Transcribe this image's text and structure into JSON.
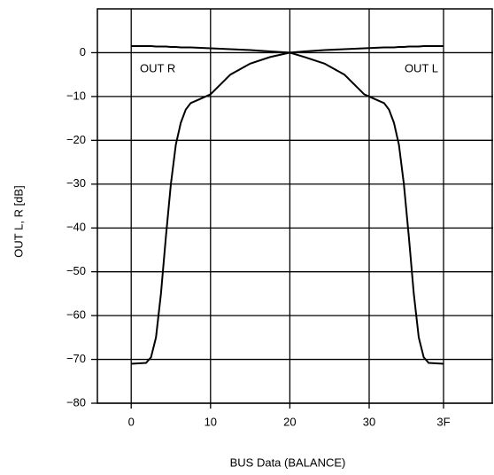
{
  "chart_data": {
    "type": "line",
    "x_label": "BUS Data (BALANCE)",
    "y_label": "OUT L, R [dB]",
    "x": [
      0,
      3,
      4,
      5,
      6,
      7,
      8,
      9,
      10,
      11,
      12,
      14,
      16,
      20,
      24,
      28,
      32,
      35,
      39,
      43,
      47,
      49,
      51,
      52,
      53,
      54,
      55,
      56,
      57,
      58,
      59,
      60,
      63
    ],
    "series": [
      {
        "name": "OUT R",
        "color": "#000000",
        "values": [
          -71,
          -70.8,
          -69.5,
          -65,
          -55,
          -42,
          -30,
          -21,
          -16,
          -13,
          -11.5,
          -10.5,
          -9.5,
          -5,
          -2.5,
          -1,
          0,
          0.3,
          0.6,
          0.8,
          1.0,
          1.1,
          1.2,
          1.2,
          1.2,
          1.3,
          1.3,
          1.4,
          1.4,
          1.4,
          1.5,
          1.5,
          1.5
        ]
      },
      {
        "name": "OUT L",
        "color": "#000000",
        "values": [
          1.5,
          1.5,
          1.5,
          1.4,
          1.4,
          1.4,
          1.3,
          1.3,
          1.2,
          1.2,
          1.2,
          1.1,
          1.0,
          0.8,
          0.6,
          0.3,
          0,
          -1,
          -2.5,
          -5,
          -9.5,
          -10.5,
          -11.5,
          -13,
          -16,
          -21,
          -30,
          -42,
          -55,
          -65,
          -69.5,
          -70.8,
          -71
        ]
      }
    ],
    "xlim": [
      -7,
      73
    ],
    "xticks": [
      0,
      {
        "value": 16,
        "label": "10"
      },
      {
        "value": 32,
        "label": "20"
      },
      {
        "value": 48,
        "label": "30"
      },
      {
        "value": 63,
        "label": "3F"
      }
    ],
    "ylim": [
      -80,
      10
    ],
    "yticks": [
      {
        "value": -80,
        "label": "−80"
      },
      {
        "value": -70,
        "label": "−70"
      },
      {
        "value": -60,
        "label": "−60"
      },
      {
        "value": -50,
        "label": "−50"
      },
      {
        "value": -40,
        "label": "−40"
      },
      {
        "value": -30,
        "label": "−30"
      },
      {
        "value": -20,
        "label": "−20"
      },
      {
        "value": -10,
        "label": "−10"
      },
      0
    ],
    "grid": true
  }
}
